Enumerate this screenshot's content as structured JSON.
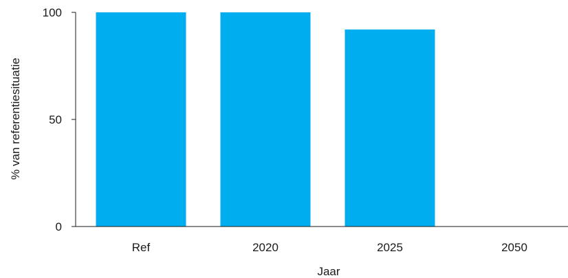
{
  "chart_data": {
    "type": "bar",
    "title": "",
    "xlabel": "Jaar",
    "ylabel": "% van referentiesituatie",
    "categories": [
      "Ref",
      "2020",
      "2025",
      "2050"
    ],
    "values": [
      100,
      100,
      92,
      0
    ],
    "ylim": [
      0,
      100
    ],
    "yticks": [
      0,
      50,
      100
    ],
    "grid": false,
    "bar_color": "#00aeef"
  }
}
